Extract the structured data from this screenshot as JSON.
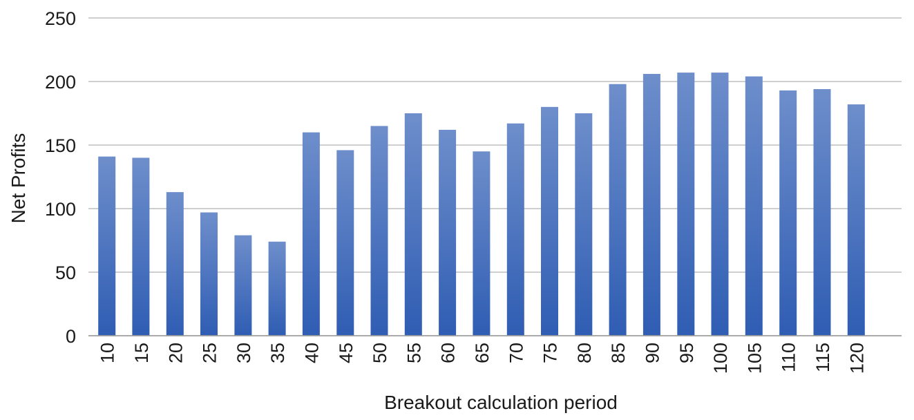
{
  "chart_data": {
    "type": "bar",
    "title": "",
    "xlabel": "Breakout calculation period",
    "ylabel": "Net Profits",
    "categories": [
      "10",
      "15",
      "20",
      "25",
      "30",
      "35",
      "40",
      "45",
      "50",
      "55",
      "60",
      "65",
      "70",
      "75",
      "80",
      "85",
      "90",
      "95",
      "100",
      "105",
      "110",
      "115",
      "120"
    ],
    "series": [
      {
        "values": [
          141,
          140,
          113,
          97,
          79,
          74,
          160,
          146,
          165,
          175,
          162,
          145,
          167,
          180,
          175,
          198,
          206,
          207,
          207,
          204,
          193,
          194,
          182
        ]
      }
    ],
    "ylim": [
      0,
      250
    ],
    "yticks": [
      0,
      50,
      100,
      150,
      200,
      250
    ],
    "grid": true,
    "legend": "none",
    "colors": {
      "bar_top": "#6e8ecb",
      "bar_bottom": "#2f5db3",
      "gridline": "#bdbdbd",
      "text": "#1a1a1a"
    }
  }
}
